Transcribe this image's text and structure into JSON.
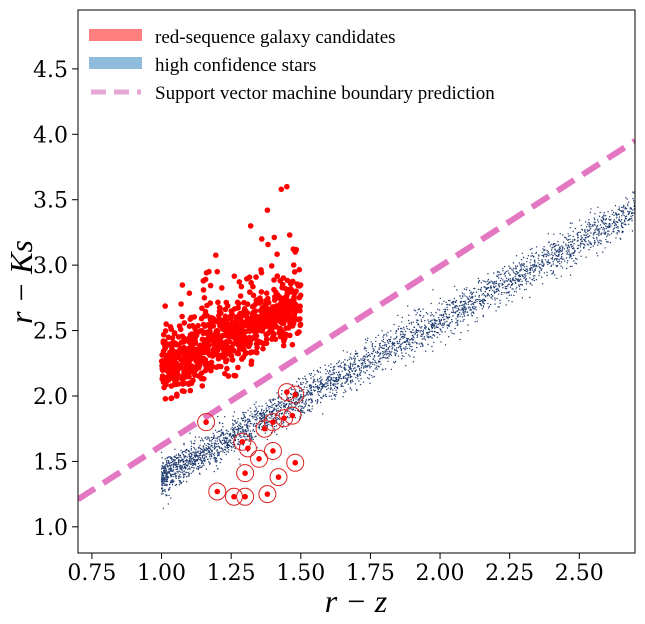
{
  "chart_data": {
    "type": "scatter",
    "title": "",
    "xlabel": "r − z",
    "ylabel": "r − Ks",
    "xlim": [
      0.7,
      2.7
    ],
    "ylim": [
      0.8,
      4.95
    ],
    "x_ticks": [
      0.75,
      1.0,
      1.25,
      1.5,
      1.75,
      2.0,
      2.25,
      2.5
    ],
    "x_tick_labels": [
      "0.75",
      "1.00",
      "1.25",
      "1.50",
      "1.75",
      "2.00",
      "2.25",
      "2.50"
    ],
    "y_ticks": [
      1.0,
      1.5,
      2.0,
      2.5,
      3.0,
      3.5,
      4.0,
      4.5
    ],
    "y_tick_labels": [
      "1.0",
      "1.5",
      "2.0",
      "2.5",
      "3.0",
      "3.5",
      "4.0",
      "4.5"
    ],
    "grid": false,
    "legend_position": "top-left",
    "colors": {
      "red_sequence": "#ff0000",
      "red_legend": "#ff7f7f",
      "stars": "#1f3b6f",
      "stars_legend": "#8fbbdc",
      "boundary": "#e377c2",
      "circle": "#dd2222"
    },
    "series": [
      {
        "name": "red-sequence galaxy candidates",
        "kind": "scatter",
        "approx_distribution": {
          "x_range": [
            1.0,
            1.5
          ],
          "y_lower_at_x_min": 1.95,
          "y_center_at_x_min": 2.2,
          "y_center_at_x_max": 2.7,
          "y_spread": 0.4,
          "count": 900
        },
        "outliers": [
          [
            1.45,
            3.6
          ],
          [
            1.43,
            3.58
          ],
          [
            1.38,
            3.42
          ],
          [
            1.32,
            3.3
          ],
          [
            1.36,
            3.2
          ],
          [
            1.2,
            2.95
          ],
          [
            1.15,
            2.88
          ],
          [
            1.48,
            3.1
          ]
        ]
      },
      {
        "name": "high confidence stars",
        "kind": "scatter",
        "approx_distribution": {
          "x_range": [
            1.0,
            2.7
          ],
          "relation": "y = 0.178 + 1.2 * x",
          "y_spread": 0.07,
          "count": 3500
        }
      },
      {
        "name": "Support vector machine boundary prediction",
        "kind": "line",
        "style": "dashed",
        "x": [
          0.7,
          2.7
        ],
        "y": [
          1.21,
          3.95
        ]
      },
      {
        "name": "circled sources",
        "kind": "scatter",
        "in_legend": false,
        "points": [
          [
            1.16,
            1.8
          ],
          [
            1.45,
            2.03
          ],
          [
            1.48,
            2.01
          ],
          [
            1.29,
            1.65
          ],
          [
            1.37,
            1.75
          ],
          [
            1.4,
            1.8
          ],
          [
            1.44,
            1.83
          ],
          [
            1.47,
            1.85
          ],
          [
            1.31,
            1.6
          ],
          [
            1.35,
            1.52
          ],
          [
            1.4,
            1.58
          ],
          [
            1.48,
            1.49
          ],
          [
            1.3,
            1.41
          ],
          [
            1.42,
            1.38
          ],
          [
            1.2,
            1.27
          ],
          [
            1.26,
            1.23
          ],
          [
            1.3,
            1.23
          ],
          [
            1.38,
            1.25
          ]
        ]
      }
    ]
  }
}
